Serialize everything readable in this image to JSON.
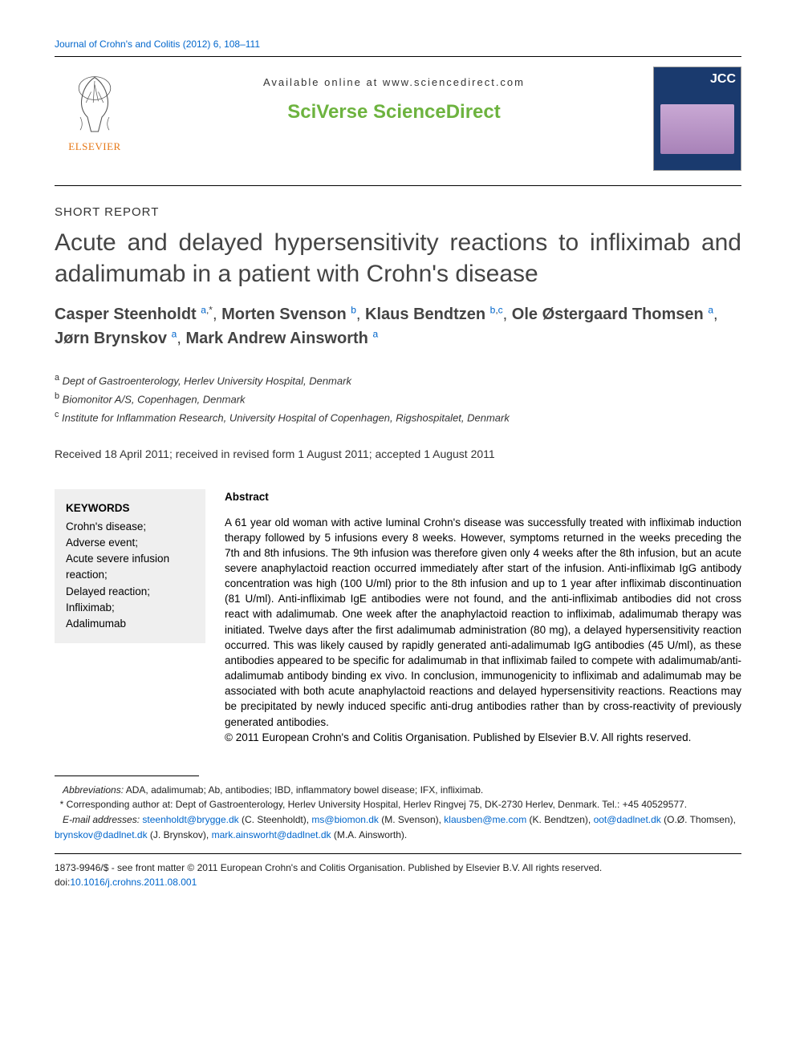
{
  "journal_ref": "Journal of Crohn's and Colitis (2012) 6, 108–111",
  "header": {
    "available_online": "Available online at www.sciencedirect.com",
    "brand": "SciVerse ScienceDirect",
    "elsevier": "ELSEVIER",
    "cover_label": "JCC"
  },
  "article_type": "SHORT REPORT",
  "title": "Acute and delayed hypersensitivity reactions to infliximab and adalimumab in a patient with Crohn's disease",
  "authors": [
    {
      "name": "Casper Steenholdt",
      "marks": "a,*"
    },
    {
      "name": "Morten Svenson",
      "marks": "b"
    },
    {
      "name": "Klaus Bendtzen",
      "marks": "b, c"
    },
    {
      "name": "Ole Østergaard Thomsen",
      "marks": "a"
    },
    {
      "name": "Jørn Brynskov",
      "marks": "a"
    },
    {
      "name": "Mark Andrew Ainsworth",
      "marks": "a"
    }
  ],
  "affiliations": {
    "a": "Dept of Gastroenterology, Herlev University Hospital, Denmark",
    "b": "Biomonitor A/S, Copenhagen, Denmark",
    "c": "Institute for Inflammation Research, University Hospital of Copenhagen, Rigshospitalet, Denmark"
  },
  "dates": "Received 18 April 2011; received in revised form 1 August 2011; accepted 1 August 2011",
  "keywords": {
    "heading": "KEYWORDS",
    "items": [
      "Crohn's disease;",
      "Adverse event;",
      "Acute severe infusion reaction;",
      "Delayed reaction;",
      "Infliximab;",
      "Adalimumab"
    ]
  },
  "abstract": {
    "heading": "Abstract",
    "body": "A 61 year old woman with active luminal Crohn's disease was successfully treated with infliximab induction therapy followed by 5 infusions every 8 weeks. However, symptoms returned in the weeks preceding the 7th and 8th infusions. The 9th infusion was therefore given only 4 weeks after the 8th infusion, but an acute severe anaphylactoid reaction occurred immediately after start of the infusion. Anti-infliximab IgG antibody concentration was high (100 U/ml) prior to the 8th infusion and up to 1 year after infliximab discontinuation (81 U/ml). Anti-infliximab IgE antibodies were not found, and the anti-infliximab antibodies did not cross react with adalimumab. One week after the anaphylactoid reaction to infliximab, adalimumab therapy was initiated. Twelve days after the first adalimumab administration (80 mg), a delayed hypersensitivity reaction occurred. This was likely caused by rapidly generated anti-adalimumab IgG antibodies (45 U/ml), as these antibodies appeared to be specific for adalimumab in that infliximab failed to compete with adalimumab/anti-adalimumab antibody binding ex vivo. In conclusion, immunogenicity to infliximab and adalimumab may be associated with both acute anaphylactoid reactions and delayed hypersensitivity reactions. Reactions may be precipitated by newly induced specific anti-drug antibodies rather than by cross-reactivity of previously generated antibodies.",
    "copyright": "© 2011 European Crohn's and Colitis Organisation. Published by Elsevier B.V. All rights reserved."
  },
  "footnotes": {
    "abbreviations_label": "Abbreviations:",
    "abbreviations": "ADA, adalimumab; Ab, antibodies; IBD, inflammatory bowel disease; IFX, infliximab.",
    "corresponding": "* Corresponding author at: Dept of Gastroenterology, Herlev University Hospital, Herlev Ringvej 75, DK-2730 Herlev, Denmark. Tel.: +45 40529577.",
    "email_label": "E-mail addresses:",
    "emails": [
      {
        "addr": "steenholdt@brygge.dk",
        "who": "(C. Steenholdt)"
      },
      {
        "addr": "ms@biomon.dk",
        "who": "(M. Svenson)"
      },
      {
        "addr": "klausben@me.com",
        "who": "(K. Bendtzen)"
      },
      {
        "addr": "oot@dadlnet.dk",
        "who": "(O.Ø. Thomsen)"
      },
      {
        "addr": "brynskov@dadlnet.dk",
        "who": "(J. Brynskov)"
      },
      {
        "addr": "mark.ainsworht@dadlnet.dk",
        "who": "(M.A. Ainsworth)"
      }
    ]
  },
  "bottom": {
    "issn_line": "1873-9946/$ - see front matter © 2011 European Crohn's and Colitis Organisation. Published by Elsevier B.V. All rights reserved.",
    "doi_label": "doi:",
    "doi": "10.1016/j.crohns.2011.08.001"
  },
  "colors": {
    "link": "#0066cc",
    "brand_green": "#6db33f",
    "elsevier_orange": "#e67817"
  }
}
